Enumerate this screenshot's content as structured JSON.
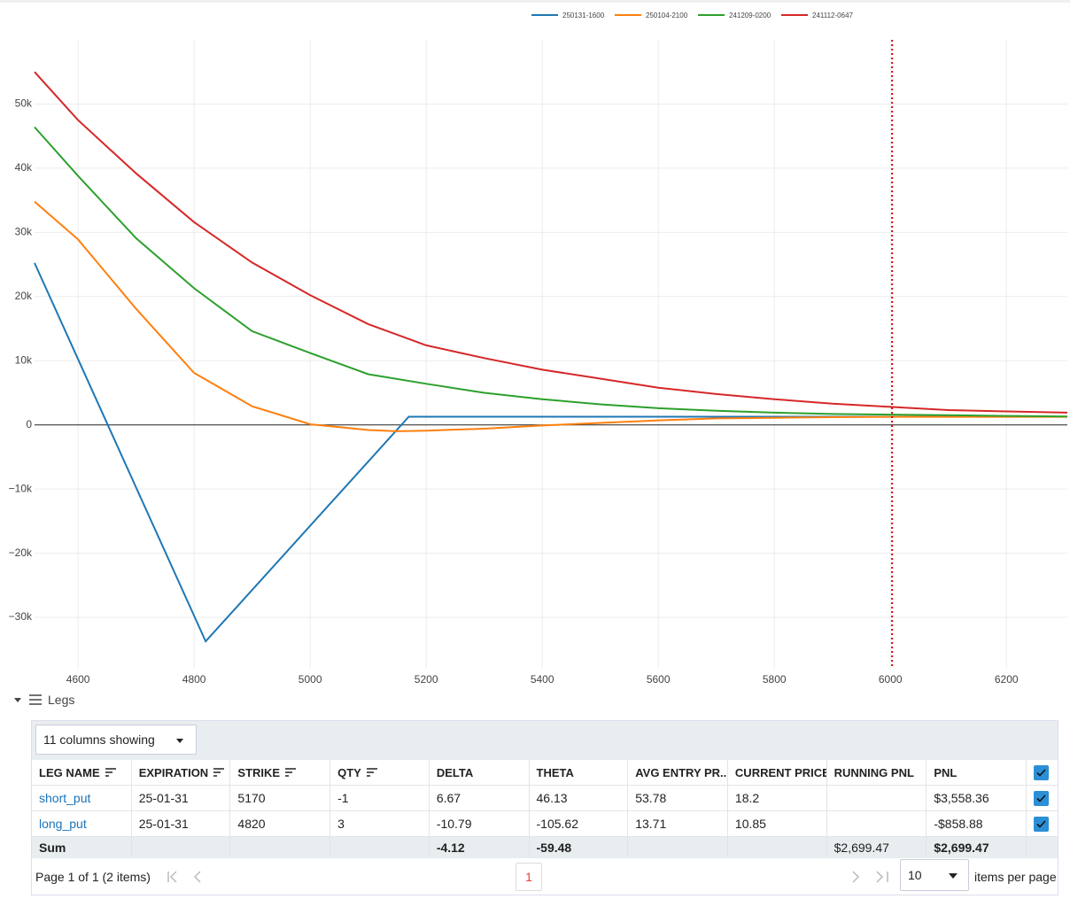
{
  "chart_data": {
    "type": "line",
    "xlim": [
      4525,
      6305
    ],
    "xticks": [
      4600,
      4800,
      5000,
      5200,
      5400,
      5600,
      5800,
      6000,
      6200
    ],
    "ylim": [
      -38000,
      60000
    ],
    "yticks": [
      {
        "value": -30000,
        "label": "−30k"
      },
      {
        "value": -20000,
        "label": "−20k"
      },
      {
        "value": -10000,
        "label": "−10k"
      },
      0,
      {
        "value": 10000,
        "label": "10k"
      },
      {
        "value": 20000,
        "label": "20k"
      },
      {
        "value": 30000,
        "label": "30k"
      },
      {
        "value": 40000,
        "label": "40k"
      },
      {
        "value": 50000,
        "label": "50k"
      }
    ],
    "grid": true,
    "legend": "top",
    "vline": {
      "x": 6003,
      "color": "#cc0000"
    },
    "series": [
      {
        "name": "250131-1600",
        "color": "#1f77b4",
        "x": [
          4525,
          4820,
          5170,
          6305
        ],
        "values": [
          25235,
          -33735,
          1265,
          1265
        ]
      },
      {
        "name": "250104-2100",
        "color": "#ff7f0e",
        "x": [
          4525,
          4600,
          4700,
          4800,
          4900,
          5000,
          5100,
          5150,
          5200,
          5300,
          5400,
          5500,
          5600,
          5700,
          5800,
          5900,
          6000,
          6100,
          6200,
          6305
        ],
        "values": [
          34800,
          28900,
          18100,
          8100,
          2900,
          100,
          -800,
          -1000,
          -900,
          -600,
          -100,
          300,
          700,
          1000,
          1100,
          1200,
          1250,
          1250,
          1250,
          1250
        ]
      },
      {
        "name": "241209-0200",
        "color": "#2ca02c",
        "x": [
          4525,
          4600,
          4700,
          4800,
          4900,
          5000,
          5100,
          5200,
          5300,
          5400,
          5500,
          5600,
          5700,
          5800,
          5900,
          6000,
          6100,
          6200,
          6305
        ],
        "values": [
          46400,
          38800,
          29100,
          21300,
          14600,
          11200,
          7900,
          6400,
          5000,
          4000,
          3200,
          2600,
          2200,
          1900,
          1700,
          1600,
          1500,
          1400,
          1300
        ]
      },
      {
        "name": "241112-0647",
        "color": "#d62728",
        "x": [
          4525,
          4600,
          4700,
          4800,
          4900,
          5000,
          5100,
          5200,
          5300,
          5400,
          5500,
          5600,
          5700,
          5800,
          5900,
          6000,
          6100,
          6200,
          6305
        ],
        "values": [
          55000,
          47500,
          39200,
          31600,
          25300,
          20200,
          15700,
          12400,
          10400,
          8600,
          7200,
          5800,
          4800,
          4000,
          3300,
          2800,
          2300,
          2100,
          1900
        ]
      }
    ]
  },
  "legs_panel": {
    "title": "Legs",
    "columns_button": "11 columns showing",
    "table": {
      "columns": [
        "LEG NAME",
        "EXPIRATION",
        "STRIKE",
        "QTY",
        "DELTA",
        "THETA",
        "AVG ENTRY PR...",
        "CURRENT PRICE",
        "RUNNING PNL",
        "PNL"
      ],
      "rows": [
        [
          "short_put",
          "25-01-31",
          "5170",
          "-1",
          "6.67",
          "46.13",
          "53.78",
          "18.2",
          null,
          "$3,558.36"
        ],
        [
          "long_put",
          "25-01-31",
          "4820",
          "3",
          "-10.79",
          "-105.62",
          "13.71",
          "10.85",
          null,
          "-$858.88"
        ]
      ],
      "sum_row": [
        "Sum",
        null,
        null,
        null,
        "-4.12",
        "-59.48",
        null,
        null,
        "$2,699.47",
        "$2,699.47"
      ]
    },
    "pagination": {
      "summary": "Page 1 of 1 (2 items)",
      "current_page": "1",
      "page_size": "10",
      "page_size_label": "items per page"
    }
  }
}
